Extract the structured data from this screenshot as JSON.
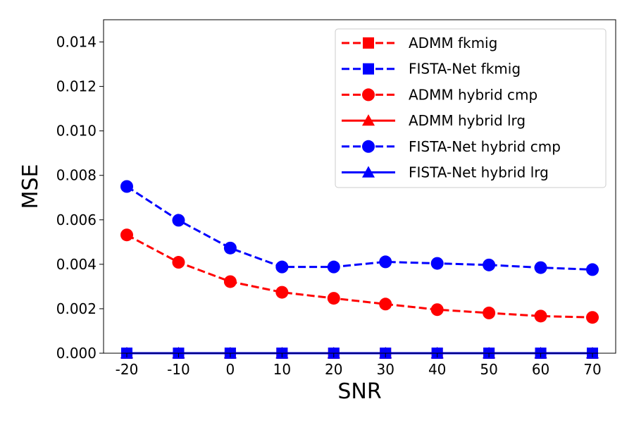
{
  "chart_data": {
    "type": "line",
    "xlabel": "SNR",
    "ylabel": "MSE",
    "categories": [
      "-20",
      "-10",
      "0",
      "10",
      "20",
      "30",
      "40",
      "50",
      "60",
      "70"
    ],
    "ylim": [
      0,
      0.015
    ],
    "yticks": [
      "0.000",
      "0.002",
      "0.004",
      "0.006",
      "0.008",
      "0.010",
      "0.012",
      "0.014"
    ],
    "grid": false,
    "legend_position": "top-right",
    "series": [
      {
        "name": "ADMM fkmig",
        "color": "#ff0000",
        "marker": "square",
        "linestyle": "dashed",
        "values": [
          0,
          0,
          0,
          0,
          0,
          0,
          0,
          0,
          0,
          0
        ]
      },
      {
        "name": "FISTA-Net fkmig",
        "color": "#0000ff",
        "marker": "square",
        "linestyle": "dashed",
        "values": [
          0,
          0,
          0,
          0,
          0,
          0,
          0,
          0,
          0,
          0
        ]
      },
      {
        "name": "ADMM hybrid cmp",
        "color": "#ff0000",
        "marker": "circle",
        "linestyle": "dashed",
        "values": [
          0.00532,
          0.00409,
          0.00322,
          0.00274,
          0.00247,
          0.00221,
          0.00196,
          0.00181,
          0.00167,
          0.00161
        ]
      },
      {
        "name": "ADMM hybrid lrg",
        "color": "#ff0000",
        "marker": "triangle",
        "linestyle": "solid",
        "values": [
          0,
          0,
          0,
          0,
          0,
          0,
          0,
          0,
          0,
          0
        ]
      },
      {
        "name": "FISTA-Net hybrid cmp",
        "color": "#0000ff",
        "marker": "circle",
        "linestyle": "dashed",
        "values": [
          0.0075,
          0.00598,
          0.00473,
          0.00388,
          0.00388,
          0.00411,
          0.00404,
          0.00397,
          0.00385,
          0.00376
        ]
      },
      {
        "name": "FISTA-Net hybrid lrg",
        "color": "#0000ff",
        "marker": "triangle",
        "linestyle": "solid",
        "values": [
          0,
          0,
          0,
          0,
          0,
          0,
          0,
          0,
          0,
          0
        ]
      }
    ]
  }
}
